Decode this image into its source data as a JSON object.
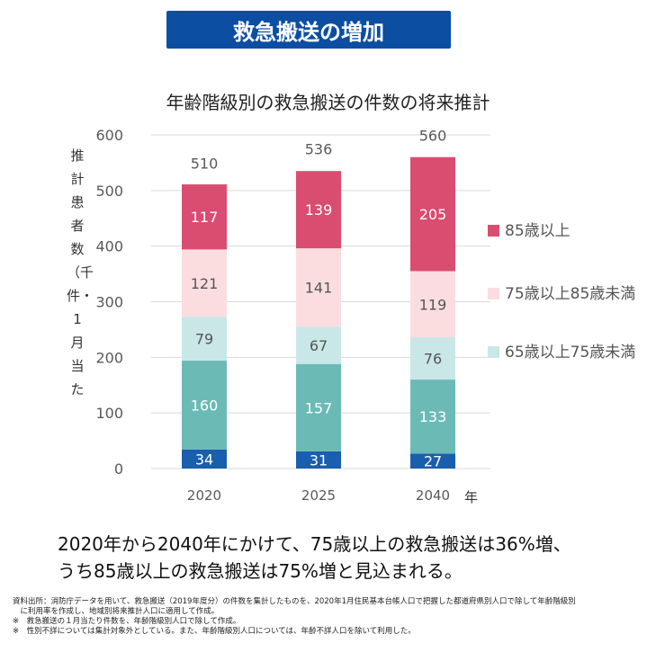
{
  "banner": "救急搬送の増加",
  "chart_data": {
    "type": "bar",
    "stacked": true,
    "title": "年齢階級別の救急搬送の件数の将来推計",
    "ylabel": "推計患者数（千件・1月当た",
    "xunit": "年",
    "categories": [
      "2020",
      "2025",
      "2040"
    ],
    "ylim": [
      0,
      600
    ],
    "yticks": [
      0,
      100,
      200,
      300,
      400,
      500,
      600
    ],
    "grid": true,
    "legend_position": "right",
    "totals": [
      510,
      536,
      560
    ],
    "series": [
      {
        "values": [
          34,
          31,
          27
        ],
        "color": "#1a5eae",
        "label_color": "#ffffff"
      },
      {
        "values": [
          160,
          157,
          133
        ],
        "color": "#6cbab6",
        "label_color": "#ffffff"
      },
      {
        "name": "65歳以上75歳未満",
        "values": [
          79,
          67,
          76
        ],
        "color": "#c9e7e6",
        "label_color": "#555555"
      },
      {
        "name": "75歳以上85歳未満",
        "values": [
          121,
          141,
          119
        ],
        "color": "#fbdde0",
        "label_color": "#555555"
      },
      {
        "name": "85歳以上",
        "values": [
          117,
          139,
          205
        ],
        "color": "#d94d70",
        "label_color": "#ffffff"
      }
    ]
  },
  "summary": [
    "2020年から2040年にかけて、75歳以上の救急搬送は36%増、",
    "うち85歳以上の救急搬送は75%増と見込まれる。"
  ],
  "notes": [
    "資料出所：消防庁データを用いて、救急搬送（2019年度分）の件数を集計したものを、2020年1月住民基本台帳人口で把握した都道府県別人口で除して年齢階級別",
    "　に利用率を作成し、地域別将来推計人口に適用して作成。",
    "※　救急搬送の１月当たり件数を、年齢階級別人口で除して作成。",
    "※　性別不詳については集計対象外としている。また、年齢階級別人口については、年齢不詳人口を除いて利用した。"
  ]
}
